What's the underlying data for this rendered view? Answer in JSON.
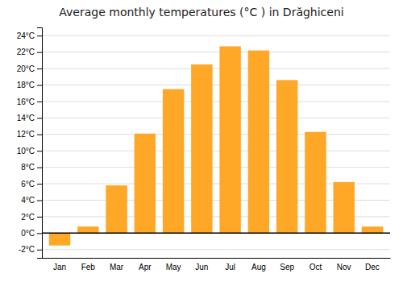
{
  "chart_data": {
    "type": "bar",
    "title": "Average monthly temperatures (°C ) in Drăghiceni",
    "categories": [
      "Jan",
      "Feb",
      "Mar",
      "Apr",
      "May",
      "Jun",
      "Jul",
      "Aug",
      "Sep",
      "Oct",
      "Nov",
      "Dec"
    ],
    "values": [
      -1.5,
      0.8,
      5.8,
      12.1,
      17.5,
      20.5,
      22.7,
      22.2,
      18.6,
      12.3,
      6.2,
      0.8
    ],
    "color": "#FFA726",
    "ylim": [
      -3,
      25
    ],
    "yticks": [
      {
        "value": -2,
        "label": "-2°C"
      },
      {
        "value": 0,
        "label": "0°C"
      },
      {
        "value": 2,
        "label": "2°C"
      },
      {
        "value": 4,
        "label": "4°C"
      },
      {
        "value": 6,
        "label": "6°C"
      },
      {
        "value": 8,
        "label": "8°C"
      },
      {
        "value": 10,
        "label": "10°C"
      },
      {
        "value": 12,
        "label": "12°C"
      },
      {
        "value": 14,
        "label": "14°C"
      },
      {
        "value": 16,
        "label": "16°C"
      },
      {
        "value": 18,
        "label": "18°C"
      },
      {
        "value": 20,
        "label": "20°C"
      },
      {
        "value": 22,
        "label": "22°C"
      },
      {
        "value": 24,
        "label": "24°C"
      }
    ],
    "grid": true
  }
}
